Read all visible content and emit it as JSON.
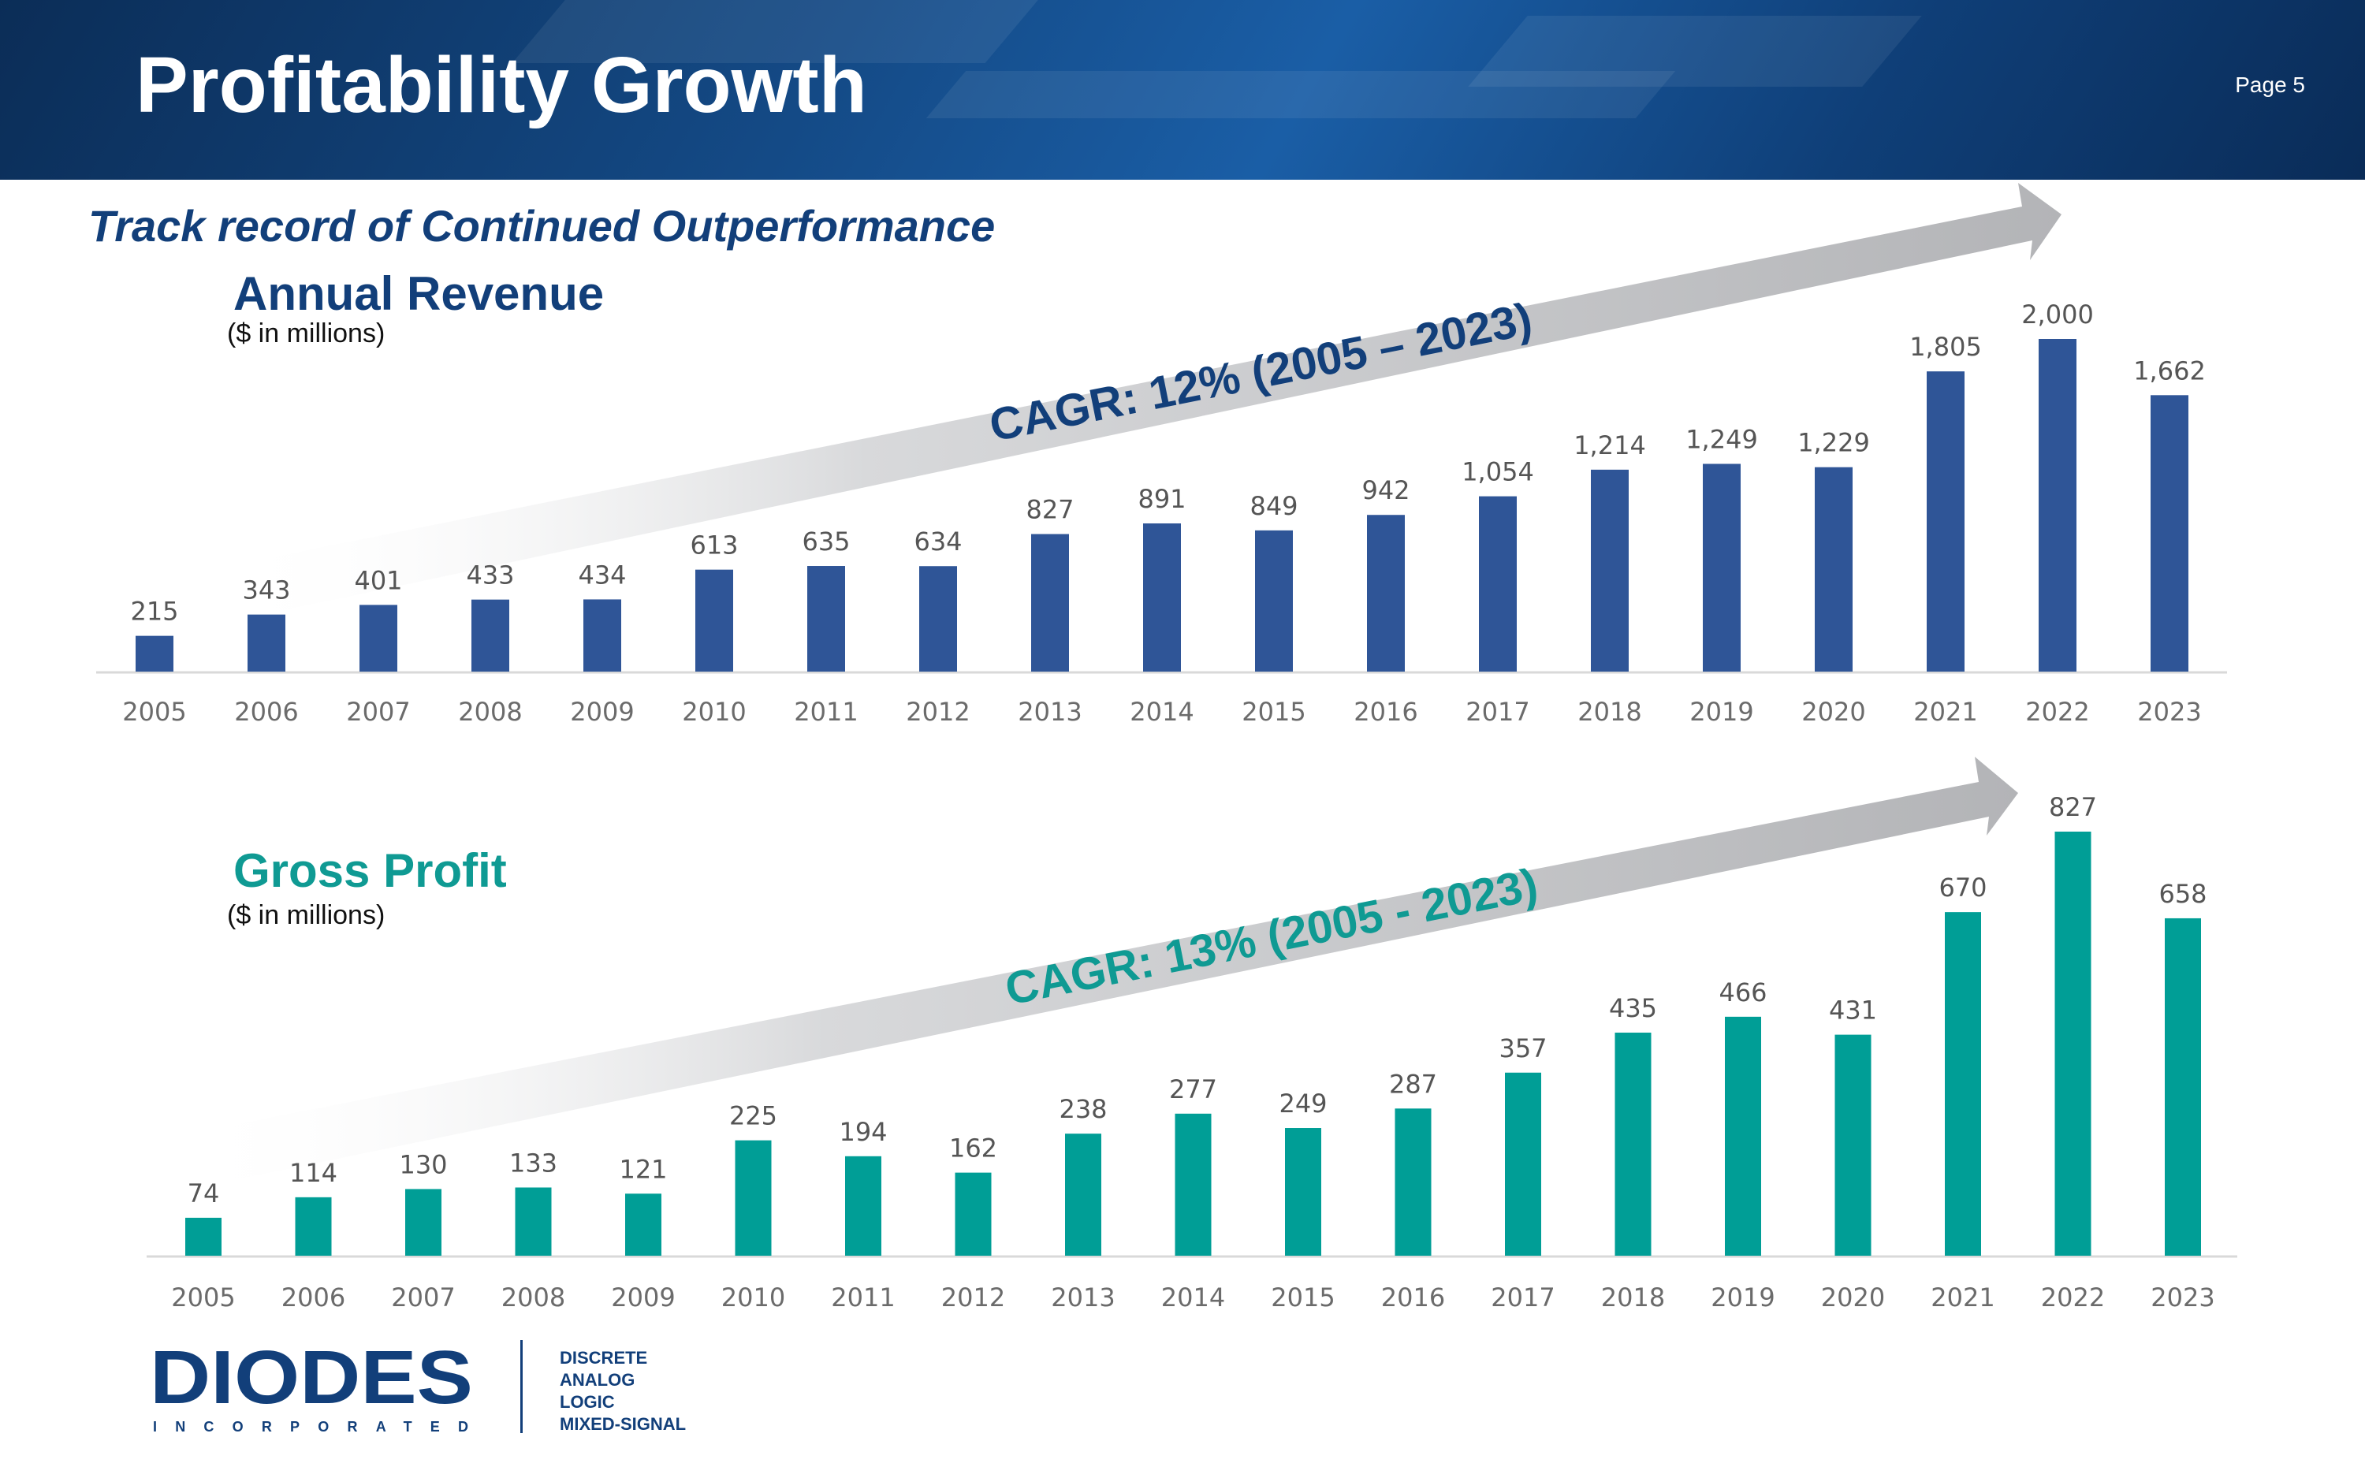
{
  "header": {
    "title": "Profitability Growth",
    "page": "Page 5"
  },
  "subtitle": "Track record of Continued Outperformance",
  "colors": {
    "revenue": "#2f5597",
    "gross_profit": "#009e96",
    "header": "#123f7a",
    "arrow": "#b9babd"
  },
  "sections": {
    "revenue": {
      "title": "Annual Revenue",
      "unit": "($ in millions)",
      "cagr": "CAGR: 12% (2005 – 2023)"
    },
    "profit": {
      "title": "Gross Profit",
      "unit": "($ in millions)",
      "cagr": "CAGR: 13% (2005 - 2023)"
    }
  },
  "chart_data": [
    {
      "type": "bar",
      "title": "Annual Revenue",
      "categories": [
        "2005",
        "2006",
        "2007",
        "2008",
        "2009",
        "2010",
        "2011",
        "2012",
        "2013",
        "2014",
        "2015",
        "2016",
        "2017",
        "2018",
        "2019",
        "2020",
        "2021",
        "2022",
        "2023"
      ],
      "series": [
        {
          "values": [
            215,
            343,
            401,
            433,
            434,
            613,
            635,
            634,
            827,
            891,
            849,
            942,
            1054,
            1214,
            1249,
            1229,
            1805,
            2000,
            1662
          ]
        }
      ],
      "value_labels": [
        "215",
        "343",
        "401",
        "433",
        "434",
        "613",
        "635",
        "634",
        "827",
        "891",
        "849",
        "942",
        "1,054",
        "1,214",
        "1,249",
        "1,229",
        "1,805",
        "2,000",
        "1,662"
      ],
      "ylim": [
        0,
        2000
      ],
      "color": "#2f5597",
      "grid": false
    },
    {
      "type": "bar",
      "title": "Gross Profit",
      "categories": [
        "2005",
        "2006",
        "2007",
        "2008",
        "2009",
        "2010",
        "2011",
        "2012",
        "2013",
        "2014",
        "2015",
        "2016",
        "2017",
        "2018",
        "2019",
        "2020",
        "2021",
        "2022",
        "2023"
      ],
      "series": [
        {
          "values": [
            74,
            114,
            130,
            133,
            121,
            225,
            194,
            162,
            238,
            277,
            249,
            287,
            357,
            435,
            466,
            431,
            670,
            827,
            658
          ]
        }
      ],
      "value_labels": [
        "74",
        "114",
        "130",
        "133",
        "121",
        "225",
        "194",
        "162",
        "238",
        "277",
        "249",
        "287",
        "357",
        "435",
        "466",
        "431",
        "670",
        "827",
        "658"
      ],
      "ylim": [
        0,
        827
      ],
      "color": "#009e96",
      "grid": false
    }
  ],
  "logo": {
    "name": "DIODES",
    "sub": "INCORPORATED",
    "tagline": [
      "DISCRETE",
      "ANALOG",
      "LOGIC",
      "MIXED-SIGNAL"
    ]
  }
}
